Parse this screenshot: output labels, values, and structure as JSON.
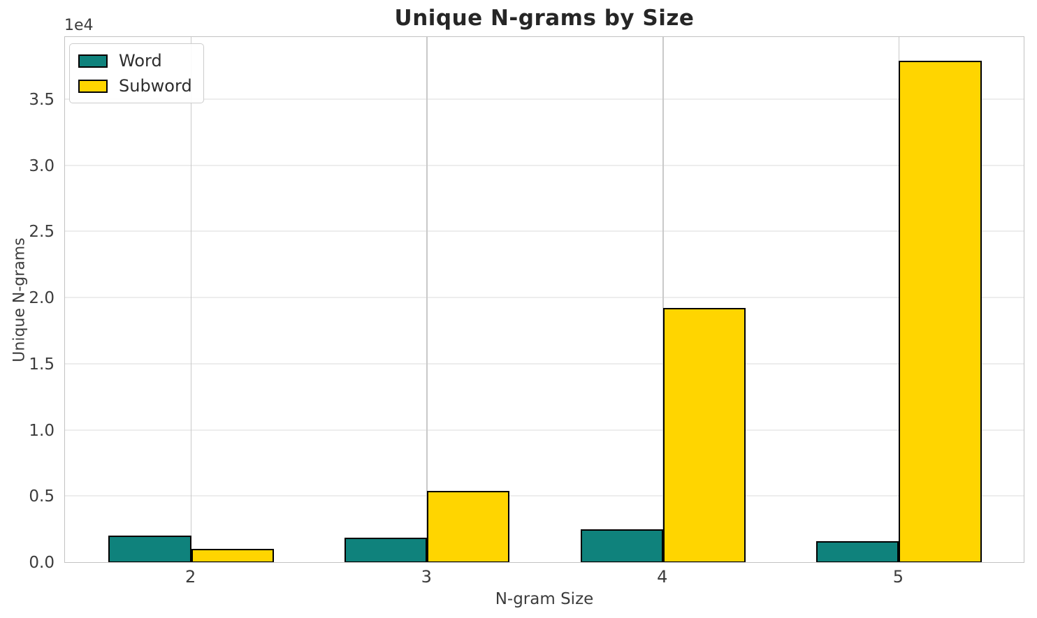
{
  "chart_data": {
    "type": "bar",
    "title": "Unique N-grams by Size",
    "xlabel": "N-gram Size",
    "ylabel": "Unique N-grams",
    "offset_text": "1e4",
    "categories": [
      "2",
      "3",
      "4",
      "5"
    ],
    "series": [
      {
        "name": "Word",
        "color": "#0f827c",
        "values": [
          2000,
          1850,
          2500,
          1600
        ]
      },
      {
        "name": "Subword",
        "color": "#ffd500",
        "values": [
          1000,
          5400,
          19200,
          37900
        ]
      }
    ],
    "bar_edge_color": "#000000",
    "ylim": [
      0,
      39800
    ],
    "yticks": [
      0,
      5000,
      10000,
      15000,
      20000,
      25000,
      30000,
      35000
    ],
    "ytick_labels": [
      "0.0",
      "0.5",
      "1.0",
      "1.5",
      "2.0",
      "2.5",
      "3.0",
      "3.5"
    ],
    "grid": true,
    "legend_position": "upper left"
  }
}
